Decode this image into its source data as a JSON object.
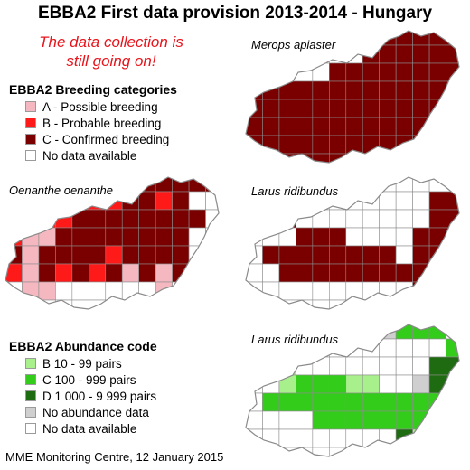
{
  "title": "EBBA2 First data provision 2013-2014 - Hungary",
  "notice_line1": "The data collection is",
  "notice_line2": "still going on!",
  "breeding_legend": {
    "title": "EBBA2 Breeding categories",
    "items": [
      {
        "label": "A - Possible breeding",
        "color": "#f5b8c0"
      },
      {
        "label": "B - Probable breeding",
        "color": "#ff1a1a"
      },
      {
        "label": "C - Confirmed breeding",
        "color": "#7a0000"
      },
      {
        "label": "No data available",
        "color": "#ffffff"
      }
    ]
  },
  "abundance_legend": {
    "title": "EBBA2 Abundance code",
    "items": [
      {
        "label": "B 10 - 99 pairs",
        "color": "#a8f08c"
      },
      {
        "label": "C 100 - 999 pairs",
        "color": "#33cc1a"
      },
      {
        "label": "D 1 000 - 9 999 pairs",
        "color": "#1f6b12"
      },
      {
        "label": "No abundance data",
        "color": "#cfcfcf"
      },
      {
        "label": "No data available",
        "color": "#ffffff"
      }
    ]
  },
  "maps": [
    {
      "species": "Merops apiaster",
      "grid": [
        "00000000CCCCC",
        "0000000CCCCCC",
        "00000CCCCCCCC",
        "CCCCCCCCCCCCC",
        "CCCCCCCCCCCCC",
        "CCCCCCCCCCCCC",
        "CCCCCCCCCCCC0",
        "0CCCCCCCCCC00"
      ]
    },
    {
      "species": "Oenanthe oenanthe",
      "grid": [
        "00000AA0CCCCC",
        "0000BBBCCBC00",
        "BBBBCCCCCCCC0",
        "BAACCCCCCCC00",
        "CACCCCBCCCC00",
        "BACBCBCACAC00",
        "0AA000000A000",
        "0000000000000"
      ]
    },
    {
      "species": "Larus ridibundus",
      "grid": [
        "0000000000000",
        "00000000000CC",
        "0CC00000000CC",
        "000CCC0000CCC",
        "0CCCCCCCC0CCC",
        "00CCCCCCCCCCC",
        "0000000000CC0",
        "0000000000000"
      ]
    },
    {
      "species": "Larus ridibundus",
      "grid": [
        "00000000NCCC0",
        "000000000000C",
        "0BB00000000DD",
        "00BCCCBB00NDD",
        "0CCCCCCCCCCCC",
        "0000CCCCCCCC0",
        "000000000DBBB",
        "0000000000000"
      ]
    }
  ],
  "footer": "MME Monitoring Centre, 12 January 2015"
}
